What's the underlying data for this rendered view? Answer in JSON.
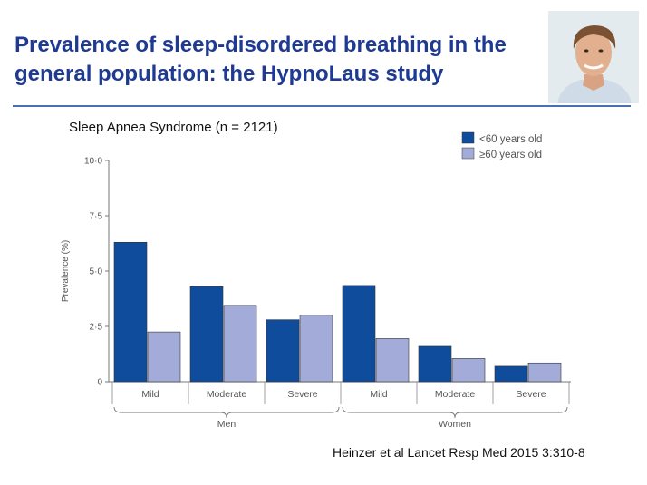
{
  "title": "Prevalence of sleep-disordered breathing in the general population: the HypnoLaus study",
  "chart_subtitle": "Sleep Apnea Syndrome (n = 2121)",
  "citation": "Heinzer et al Lancet Resp Med 2015 3:310-8",
  "colors": {
    "title": "#1f3a93",
    "series_young": "#0f4c9c",
    "series_old": "#a3acd9",
    "rule": "#4a6fb5"
  },
  "chart_data": {
    "type": "bar",
    "ylabel": "Prevalence (%)",
    "ylim": [
      0,
      10
    ],
    "yticks": [
      "0",
      "2·5",
      "5·0",
      "7·5",
      "10·0"
    ],
    "ytick_values": [
      0,
      2.5,
      5,
      7.5,
      10
    ],
    "groups": [
      {
        "label": "Men",
        "categories": [
          "Mild",
          "Moderate",
          "Severe"
        ]
      },
      {
        "label": "Women",
        "categories": [
          "Mild",
          "Moderate",
          "Severe"
        ]
      }
    ],
    "series": [
      {
        "name": "<60 years old",
        "values": [
          6.3,
          4.3,
          2.8,
          4.35,
          1.6,
          0.7
        ]
      },
      {
        "name": "≥60 years old",
        "values": [
          2.25,
          3.45,
          3.0,
          1.95,
          1.05,
          0.85
        ]
      }
    ],
    "legend_position": "top-right",
    "grid": false
  }
}
